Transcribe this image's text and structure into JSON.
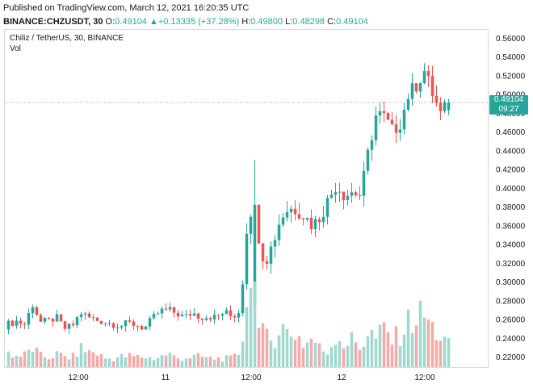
{
  "header": {
    "published": "Published on TradingView.com, March 12, 2021 16:20:35 UTC",
    "symbol": "BINANCE:CHZUSDT, 30",
    "o_label": "O:",
    "o_val": "0.49104",
    "change": "+0.13335 (+37.28%)",
    "h_label": "H:",
    "h_val": "0.49800",
    "l_label": "L:",
    "l_val": "0.48298",
    "c_label": "C:",
    "c_val": "0.49104"
  },
  "legend": {
    "title": "Chiliz / TetherUS, 30, BINANCE",
    "vol": "Vol"
  },
  "price_tag": {
    "price": "0.49104",
    "countdown": "09:27"
  },
  "colors": {
    "up": "#26a69a",
    "down": "#ef5350",
    "vol_up": "#9fd8cf",
    "vol_down": "#f4aaa8"
  },
  "chart_data": {
    "type": "candlestick",
    "title": "Chiliz / TetherUS, 30, BINANCE",
    "y_ticks": [
      "0.56000",
      "0.54000",
      "0.52000",
      "0.50000",
      "0.48000",
      "0.46000",
      "0.44000",
      "0.42000",
      "0.40000",
      "0.38000",
      "0.36000",
      "0.34000",
      "0.32000",
      "0.30000",
      "0.28000",
      "0.26000",
      "0.24000",
      "0.22000"
    ],
    "x_ticks": [
      "12:00",
      "11",
      "12:00",
      "12",
      "12:00"
    ],
    "ylim": [
      0.209,
      0.5685
    ],
    "last_price": 0.49104,
    "anchors": [
      [
        0.249,
        0.255
      ],
      [
        0.252,
        0.258
      ],
      [
        0.254,
        0.254
      ],
      [
        0.26,
        0.276
      ],
      [
        0.262,
        0.257
      ],
      [
        0.258,
        0.258
      ],
      [
        0.254,
        0.262
      ],
      [
        0.26,
        0.25
      ],
      [
        0.255,
        0.253
      ],
      [
        0.256,
        0.267
      ],
      [
        0.265,
        0.262
      ],
      [
        0.256,
        0.259
      ],
      [
        0.257,
        0.257
      ],
      [
        0.255,
        0.255
      ],
      [
        0.254,
        0.253
      ],
      [
        0.255,
        0.256
      ],
      [
        0.257,
        0.254
      ],
      [
        0.255,
        0.25
      ],
      [
        0.253,
        0.261
      ],
      [
        0.26,
        0.269
      ],
      [
        0.263,
        0.27
      ],
      [
        0.27,
        0.266
      ],
      [
        0.266,
        0.262
      ],
      [
        0.265,
        0.267
      ],
      [
        0.266,
        0.262
      ],
      [
        0.262,
        0.263
      ],
      [
        0.264,
        0.262
      ],
      [
        0.265,
        0.268
      ],
      [
        0.265,
        0.262
      ],
      [
        0.263,
        0.27
      ],
      [
        0.3,
        0.382
      ],
      [
        0.36,
        0.36
      ],
      [
        0.34,
        0.32
      ],
      [
        0.322,
        0.34
      ],
      [
        0.34,
        0.368
      ],
      [
        0.37,
        0.378
      ],
      [
        0.382,
        0.377
      ],
      [
        0.37,
        0.37
      ],
      [
        0.362,
        0.36
      ],
      [
        0.36,
        0.37
      ],
      [
        0.37,
        0.388
      ],
      [
        0.39,
        0.404
      ],
      [
        0.4,
        0.392
      ],
      [
        0.39,
        0.396
      ],
      [
        0.392,
        0.392
      ],
      [
        0.394,
        0.44
      ],
      [
        0.46,
        0.48
      ],
      [
        0.475,
        0.475
      ],
      [
        0.46,
        0.46
      ],
      [
        0.466,
        0.47
      ],
      [
        0.47,
        0.5
      ],
      [
        0.5,
        0.51
      ],
      [
        0.515,
        0.525
      ],
      [
        0.5,
        0.5
      ],
      [
        0.49,
        0.478
      ],
      [
        0.483,
        0.491
      ]
    ],
    "volume_anchors": [
      0.17,
      0.13,
      0.14,
      0.22,
      0.13,
      0.11,
      0.15,
      0.12,
      0.11,
      0.22,
      0.18,
      0.17,
      0.1,
      0.1,
      0.12,
      0.13,
      0.12,
      0.12,
      0.1,
      0.12,
      0.16,
      0.1,
      0.11,
      0.12,
      0.12,
      0.1,
      0.1,
      0.1,
      0.1,
      0.18,
      1.0,
      0.45,
      0.35,
      0.3,
      0.5,
      0.38,
      0.4,
      0.25,
      0.35,
      0.2,
      0.18,
      0.4,
      0.25,
      0.32,
      0.22,
      0.42,
      0.32,
      0.45,
      0.3,
      0.4,
      0.52,
      0.58,
      0.6,
      0.45,
      0.35,
      0.25
    ]
  }
}
